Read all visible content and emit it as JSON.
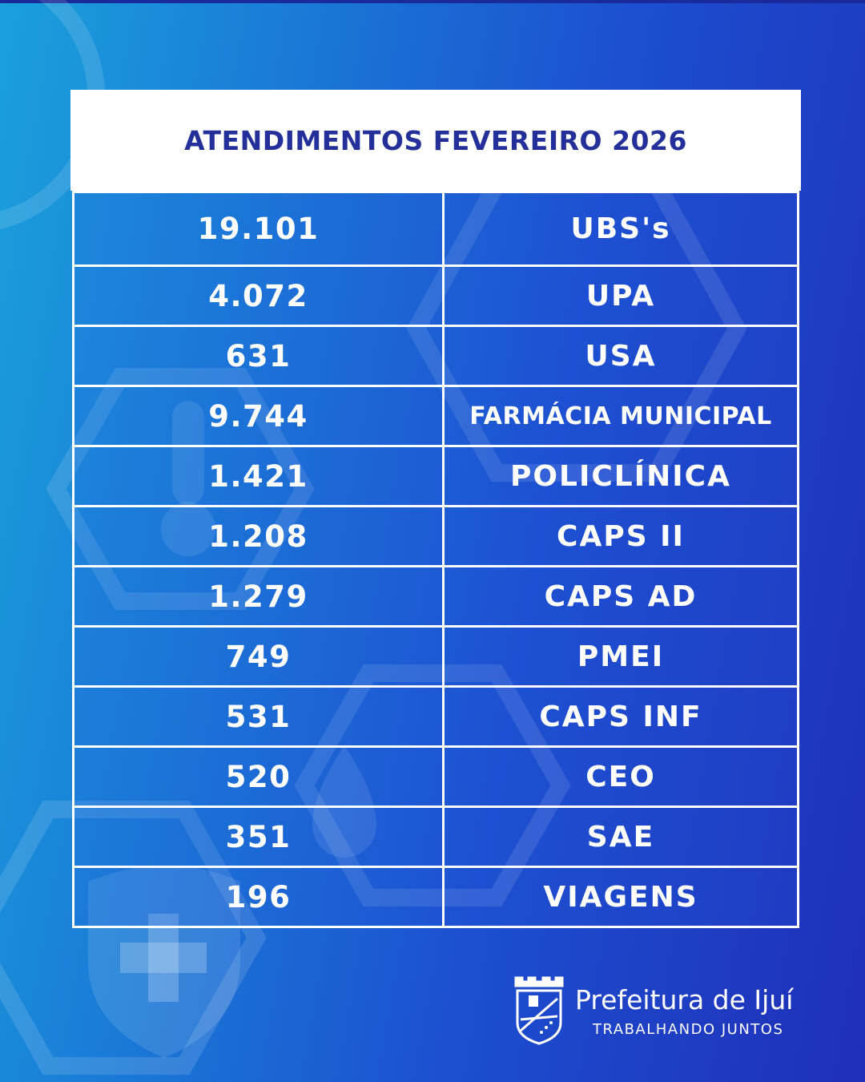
{
  "title": "ATENDIMENTOS FEVEREIRO 2026",
  "rows": [
    {
      "value": "19.101",
      "label": "UBS's"
    },
    {
      "value": "4.072",
      "label": "UPA"
    },
    {
      "value": "631",
      "label": "USA"
    },
    {
      "value": "9.744",
      "label": "FARMÁCIA MUNICIPAL"
    },
    {
      "value": "1.421",
      "label": "POLICLÍNICA"
    },
    {
      "value": "1.208",
      "label": "CAPS II"
    },
    {
      "value": "1.279",
      "label": "CAPS AD"
    },
    {
      "value": "749",
      "label": "PMEI"
    },
    {
      "value": "531",
      "label": "CAPS INF"
    },
    {
      "value": "520",
      "label": "CEO"
    },
    {
      "value": "351",
      "label": "SAE"
    },
    {
      "value": "196",
      "label": "VIAGENS"
    }
  ],
  "logo": {
    "name": "Prefeitura de Ijuí",
    "tagline": "TRABALHANDO JUNTOS",
    "icon": "city-coat-of-arms-icon"
  },
  "colors": {
    "title_text": "#23309a",
    "background_left": "#1aa0dc",
    "background_right": "#1f2fb8"
  }
}
